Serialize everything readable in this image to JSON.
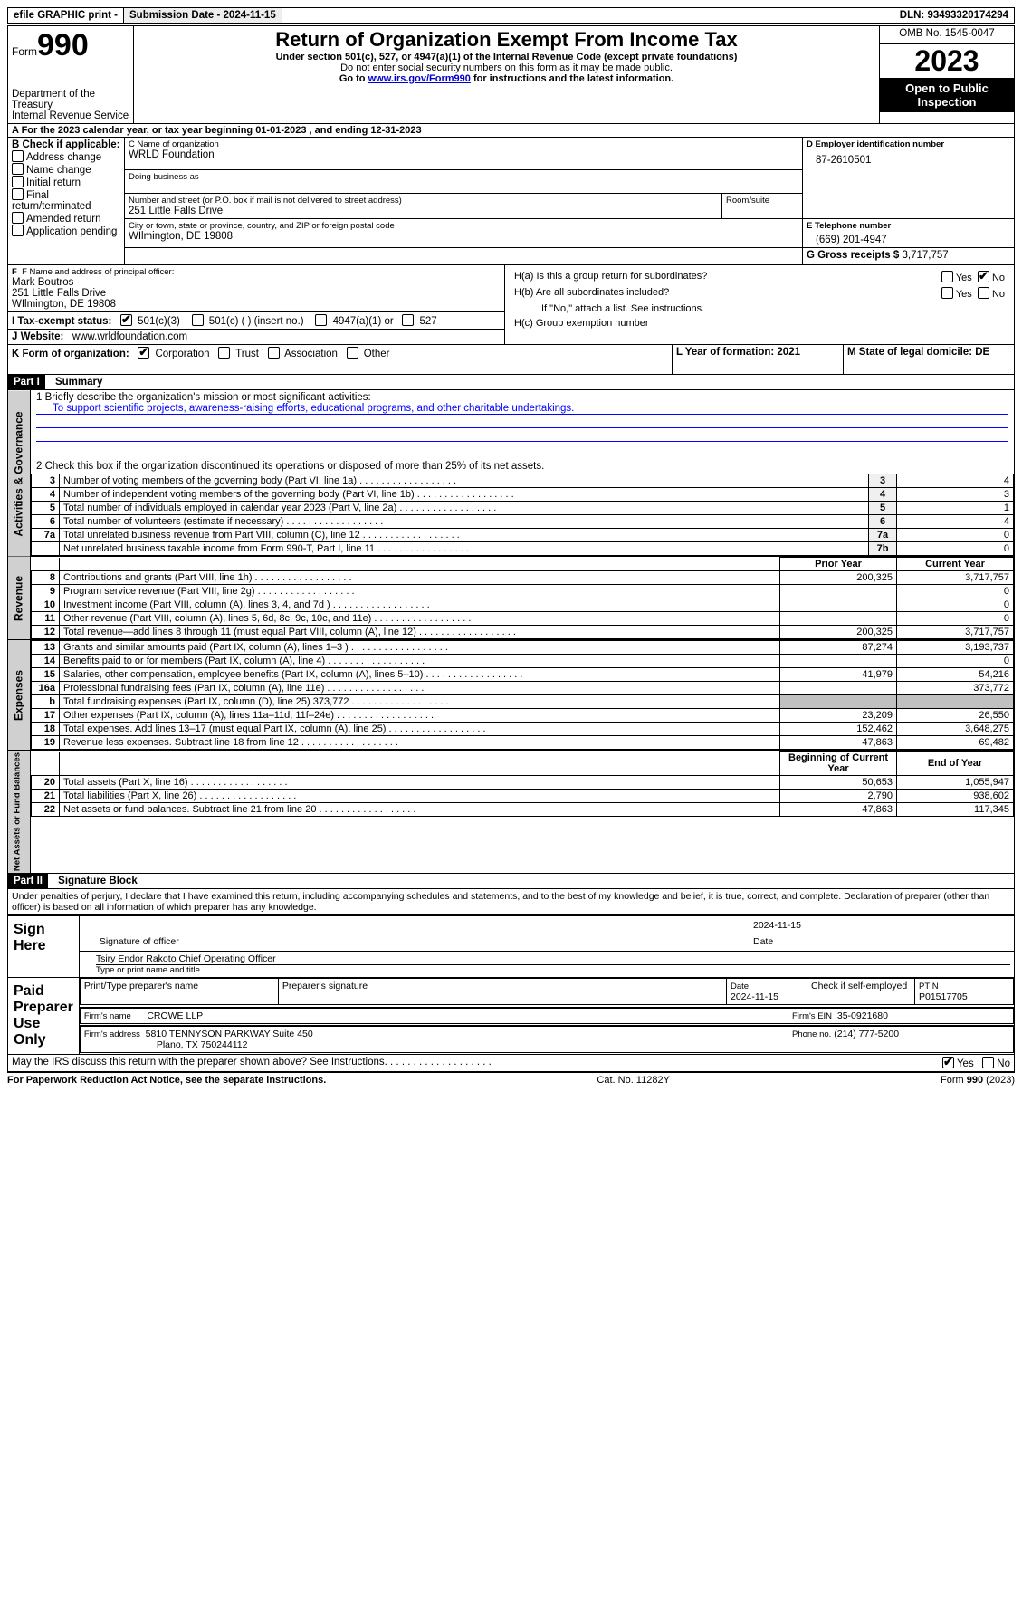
{
  "topbar": {
    "efile": "efile GRAPHIC print -",
    "submission_label": "Submission Date - 2024-11-15",
    "dln_label": "DLN: 93493320174294"
  },
  "header": {
    "form_word": "Form",
    "form_num": "990",
    "dept1": "Department of the Treasury",
    "dept2": "Internal Revenue Service",
    "title": "Return of Organization Exempt From Income Tax",
    "sub1": "Under section 501(c), 527, or 4947(a)(1) of the Internal Revenue Code (except private foundations)",
    "sub2": "Do not enter social security numbers on this form as it may be made public.",
    "sub3a": "Go to ",
    "sub3link": "www.irs.gov/Form990",
    "sub3b": " for instructions and the latest information.",
    "omb": "OMB No. 1545-0047",
    "year": "2023",
    "open": "Open to Public Inspection"
  },
  "A": {
    "line": "A For the 2023 calendar year, or tax year beginning 01-01-2023     , and ending 12-31-2023"
  },
  "B": {
    "hdr": "B Check if applicable:",
    "opts": [
      "Address change",
      "Name change",
      "Initial return",
      "Final return/terminated",
      "Amended return",
      "Application pending"
    ]
  },
  "C": {
    "name_lbl": "C Name of organization",
    "name": "WRLD Foundation",
    "dba_lbl": "Doing business as",
    "street_lbl": "Number and street (or P.O. box if mail is not delivered to street address)",
    "room_lbl": "Room/suite",
    "street": "251 Little Falls Drive",
    "city_lbl": "City or town, state or province, country, and ZIP or foreign postal code",
    "city": "WIlmington, DE  19808"
  },
  "D": {
    "lbl": "D Employer identification number",
    "val": "87-2610501"
  },
  "E": {
    "lbl": "E Telephone number",
    "val": "(669) 201-4947"
  },
  "G": {
    "lbl": "G Gross receipts $",
    "val": "3,717,757"
  },
  "F": {
    "lbl": "F  Name and address of principal officer:",
    "name": "Mark Boutros",
    "addr1": "251 Little Falls Drive",
    "addr2": "WIlmington, DE  19808"
  },
  "H": {
    "a": "H(a)  Is this a group return for subordinates?",
    "b": "H(b)  Are all subordinates included?",
    "b2": "If \"No,\" attach a list. See instructions.",
    "c": "H(c)  Group exemption number",
    "yes": "Yes",
    "no": "No"
  },
  "I": {
    "lbl": "I   Tax-exempt status:",
    "o1": "501(c)(3)",
    "o2": "501(c) (  ) (insert no.)",
    "o3": "4947(a)(1) or",
    "o4": "527"
  },
  "J": {
    "lbl": "J   Website:",
    "val": "www.wrldfoundation.com"
  },
  "K": {
    "lbl": "K Form of organization:",
    "o1": "Corporation",
    "o2": "Trust",
    "o3": "Association",
    "o4": "Other"
  },
  "L": {
    "lbl": "L Year of formation: 2021"
  },
  "M": {
    "lbl": "M State of legal domicile: DE"
  },
  "partI": {
    "hdr": "Part I",
    "title": "Summary"
  },
  "summary": {
    "l1_lbl": "1   Briefly describe the organization's mission or most significant activities:",
    "l1_val": "To support scientific projects, awareness-raising efforts, educational programs, and other charitable undertakings.",
    "l2": "2    Check this box        if the organization discontinued its operations or disposed of more than 25% of its net assets.",
    "rows_gov": [
      {
        "n": "3",
        "t": "Number of voting members of the governing body (Part VI, line 1a)",
        "b": "3",
        "v": "4"
      },
      {
        "n": "4",
        "t": "Number of independent voting members of the governing body (Part VI, line 1b)",
        "b": "4",
        "v": "3"
      },
      {
        "n": "5",
        "t": "Total number of individuals employed in calendar year 2023 (Part V, line 2a)",
        "b": "5",
        "v": "1"
      },
      {
        "n": "6",
        "t": "Total number of volunteers (estimate if necessary)",
        "b": "6",
        "v": "4"
      },
      {
        "n": "7a",
        "t": "Total unrelated business revenue from Part VIII, column (C), line 12",
        "b": "7a",
        "v": "0"
      },
      {
        "n": "",
        "t": "Net unrelated business taxable income from Form 990-T, Part I, line 11",
        "b": "7b",
        "v": "0"
      }
    ],
    "prior": "Prior Year",
    "current": "Current Year",
    "rows_rev": [
      {
        "n": "8",
        "t": "Contributions and grants (Part VIII, line 1h)",
        "p": "200,325",
        "c": "3,717,757"
      },
      {
        "n": "9",
        "t": "Program service revenue (Part VIII, line 2g)",
        "p": "",
        "c": "0"
      },
      {
        "n": "10",
        "t": "Investment income (Part VIII, column (A), lines 3, 4, and 7d )",
        "p": "",
        "c": "0"
      },
      {
        "n": "11",
        "t": "Other revenue (Part VIII, column (A), lines 5, 6d, 8c, 9c, 10c, and 11e)",
        "p": "",
        "c": "0"
      },
      {
        "n": "12",
        "t": "Total revenue—add lines 8 through 11 (must equal Part VIII, column (A), line 12)",
        "p": "200,325",
        "c": "3,717,757"
      }
    ],
    "rows_exp": [
      {
        "n": "13",
        "t": "Grants and similar amounts paid (Part IX, column (A), lines 1–3 )",
        "p": "87,274",
        "c": "3,193,737"
      },
      {
        "n": "14",
        "t": "Benefits paid to or for members (Part IX, column (A), line 4)",
        "p": "",
        "c": "0"
      },
      {
        "n": "15",
        "t": "Salaries, other compensation, employee benefits (Part IX, column (A), lines 5–10)",
        "p": "41,979",
        "c": "54,216"
      },
      {
        "n": "16a",
        "t": "Professional fundraising fees (Part IX, column (A), line 11e)",
        "p": "",
        "c": "373,772"
      },
      {
        "n": "b",
        "t": "Total fundraising expenses (Part IX, column (D), line 25) 373,772",
        "p": "SHADE",
        "c": "SHADE"
      },
      {
        "n": "17",
        "t": "Other expenses (Part IX, column (A), lines 11a–11d, 11f–24e)",
        "p": "23,209",
        "c": "26,550"
      },
      {
        "n": "18",
        "t": "Total expenses. Add lines 13–17 (must equal Part IX, column (A), line 25)",
        "p": "152,462",
        "c": "3,648,275"
      },
      {
        "n": "19",
        "t": "Revenue less expenses. Subtract line 18 from line 12",
        "p": "47,863",
        "c": "69,482"
      }
    ],
    "begin": "Beginning of Current Year",
    "end": "End of Year",
    "rows_net": [
      {
        "n": "20",
        "t": "Total assets (Part X, line 16)",
        "p": "50,653",
        "c": "1,055,947"
      },
      {
        "n": "21",
        "t": "Total liabilities (Part X, line 26)",
        "p": "2,790",
        "c": "938,602"
      },
      {
        "n": "22",
        "t": "Net assets or fund balances. Subtract line 21 from line 20",
        "p": "47,863",
        "c": "117,345"
      }
    ],
    "side_gov": "Activities & Governance",
    "side_rev": "Revenue",
    "side_exp": "Expenses",
    "side_net": "Net Assets or Fund Balances"
  },
  "partII": {
    "hdr": "Part II",
    "title": "Signature Block"
  },
  "sig": {
    "perjury": "Under penalties of perjury, I declare that I have examined this return, including accompanying schedules and statements, and to the best of my knowledge and belief, it is true, correct, and complete. Declaration of preparer (other than officer) is based on all information of which preparer has any knowledge.",
    "sign_here": "Sign Here",
    "date": "2024-11-15",
    "sig_officer_lbl": "Signature of officer",
    "officer": "Tsiry Endor Rakoto Chief Operating Officer",
    "type_lbl": "Type or print name and title",
    "date_lbl": "Date",
    "paid": "Paid Preparer Use Only",
    "prep_name_lbl": "Print/Type preparer's name",
    "prep_sig_lbl": "Preparer's signature",
    "prep_date_lbl": "Date",
    "prep_date": "2024-11-15",
    "check_self": "Check         if self-employed",
    "ptin_lbl": "PTIN",
    "ptin": "P01517705",
    "firm_name_lbl": "Firm's name",
    "firm_name": "CROWE LLP",
    "firm_ein_lbl": "Firm's EIN",
    "firm_ein": "35-0921680",
    "firm_addr_lbl": "Firm's address",
    "firm_addr1": "5810 TENNYSON PARKWAY Suite 450",
    "firm_addr2": "Plano, TX   750244112",
    "firm_phone_lbl": "Phone no.",
    "firm_phone": "(214) 777-5200",
    "discuss": "May the IRS discuss this return with the preparer shown above? See Instructions.",
    "yes": "Yes",
    "no": "No"
  },
  "footer": {
    "left": "For Paperwork Reduction Act Notice, see the separate instructions.",
    "mid": "Cat. No. 11282Y",
    "right_a": "Form ",
    "right_b": "990",
    "right_c": " (2023)"
  }
}
